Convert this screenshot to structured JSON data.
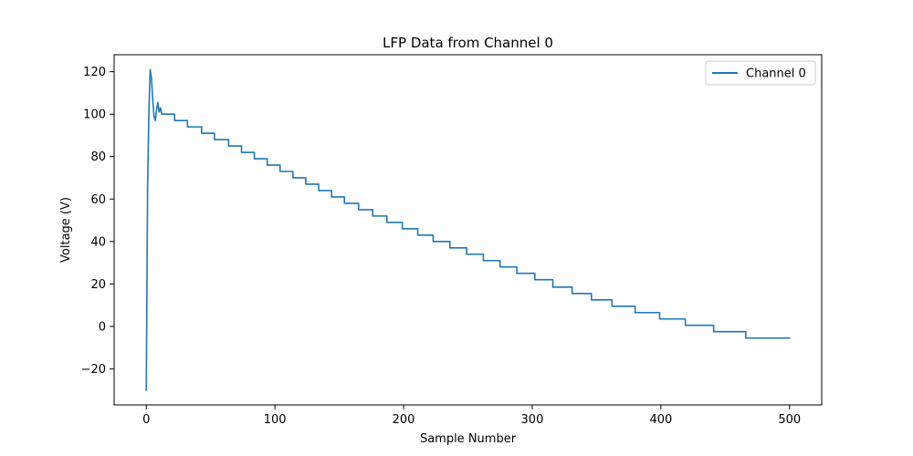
{
  "chart_data": {
    "type": "line",
    "title": "LFP Data from Channel 0",
    "xlabel": "Sample Number",
    "ylabel": "Voltage (V)",
    "xlim": [
      -25,
      525
    ],
    "ylim": [
      -37,
      128
    ],
    "xticks": [
      0,
      100,
      200,
      300,
      400,
      500
    ],
    "yticks": [
      -20,
      0,
      20,
      40,
      60,
      80,
      100,
      120
    ],
    "grid": false,
    "legend": {
      "position": "top-right",
      "entries": [
        "Channel 0"
      ]
    },
    "series": [
      {
        "name": "Channel 0",
        "color": "#1f77b4",
        "points": [
          [
            0,
            -30
          ],
          [
            1,
            65
          ],
          [
            2,
            100
          ],
          [
            3,
            121
          ],
          [
            4,
            117
          ],
          [
            5,
            107
          ],
          [
            6,
            99
          ],
          [
            7,
            97
          ],
          [
            8,
            102
          ],
          [
            9,
            105.5
          ],
          [
            10,
            101
          ],
          [
            11,
            103
          ],
          [
            12,
            100
          ],
          [
            22,
            100
          ],
          [
            22,
            97
          ],
          [
            32,
            97
          ],
          [
            32,
            94
          ],
          [
            43,
            94
          ],
          [
            43,
            91
          ],
          [
            53,
            91
          ],
          [
            53,
            88
          ],
          [
            64,
            88
          ],
          [
            64,
            85
          ],
          [
            74,
            85
          ],
          [
            74,
            82
          ],
          [
            84,
            82
          ],
          [
            84,
            79
          ],
          [
            94,
            79
          ],
          [
            94,
            76
          ],
          [
            104,
            76
          ],
          [
            104,
            73
          ],
          [
            114,
            73
          ],
          [
            114,
            70
          ],
          [
            124,
            70
          ],
          [
            124,
            67
          ],
          [
            134,
            67
          ],
          [
            134,
            64
          ],
          [
            144,
            64
          ],
          [
            144,
            61
          ],
          [
            154,
            61
          ],
          [
            154,
            58
          ],
          [
            165,
            58
          ],
          [
            165,
            55
          ],
          [
            176,
            55
          ],
          [
            176,
            52
          ],
          [
            187,
            52
          ],
          [
            187,
            49
          ],
          [
            199,
            49
          ],
          [
            199,
            46
          ],
          [
            211,
            46
          ],
          [
            211,
            43
          ],
          [
            223,
            43
          ],
          [
            223,
            40
          ],
          [
            236,
            40
          ],
          [
            236,
            37
          ],
          [
            249,
            37
          ],
          [
            249,
            34
          ],
          [
            262,
            34
          ],
          [
            262,
            31
          ],
          [
            275,
            31
          ],
          [
            275,
            28
          ],
          [
            288,
            28
          ],
          [
            288,
            25
          ],
          [
            302,
            25
          ],
          [
            302,
            22
          ],
          [
            316,
            22
          ],
          [
            316,
            18.5
          ],
          [
            331,
            18.5
          ],
          [
            331,
            15.5
          ],
          [
            346,
            15.5
          ],
          [
            346,
            12.5
          ],
          [
            362,
            12.5
          ],
          [
            362,
            9.5
          ],
          [
            380,
            9.5
          ],
          [
            380,
            6.5
          ],
          [
            399,
            6.5
          ],
          [
            399,
            3.5
          ],
          [
            419,
            3.5
          ],
          [
            419,
            0.5
          ],
          [
            441,
            0.5
          ],
          [
            441,
            -2.5
          ],
          [
            466,
            -2.5
          ],
          [
            466,
            -5.5
          ],
          [
            500,
            -5.5
          ]
        ]
      }
    ]
  }
}
